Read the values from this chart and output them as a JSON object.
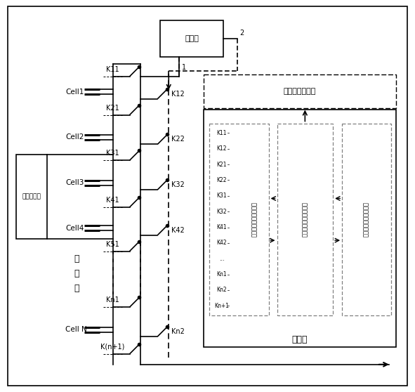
{
  "figsize": [
    5.91,
    5.58
  ],
  "dpi": 100,
  "charge_label": "充放电端口",
  "battery_label": "电\n池\n组",
  "hly_label": "恒流源",
  "ctrl_label": "控制器",
  "hly_ctrl_label": "恒流源控制信号",
  "sw_ctrl_label": "开关控制信号输出单元",
  "balance_label": "均衡规则运算功能单元",
  "bat_state_label": "电池状态采集功能单元",
  "cell_labels": [
    "Cell1",
    "Cell2",
    "Cell3",
    "Cell4",
    "Cell N"
  ],
  "sw_left_labels": [
    "K11",
    "K21",
    "K31",
    "K41",
    "K51",
    "Kn1",
    "K(n+1)"
  ],
  "sw_right_labels": [
    "K12",
    "K22",
    "K32",
    "K42",
    "Kn2"
  ],
  "ctrl_key_labels": [
    "K11",
    "K12",
    "K21",
    "K22",
    "K31",
    "K32",
    "K41",
    "K42",
    "...",
    "Kn1",
    "Kn2",
    "Kn+1"
  ]
}
